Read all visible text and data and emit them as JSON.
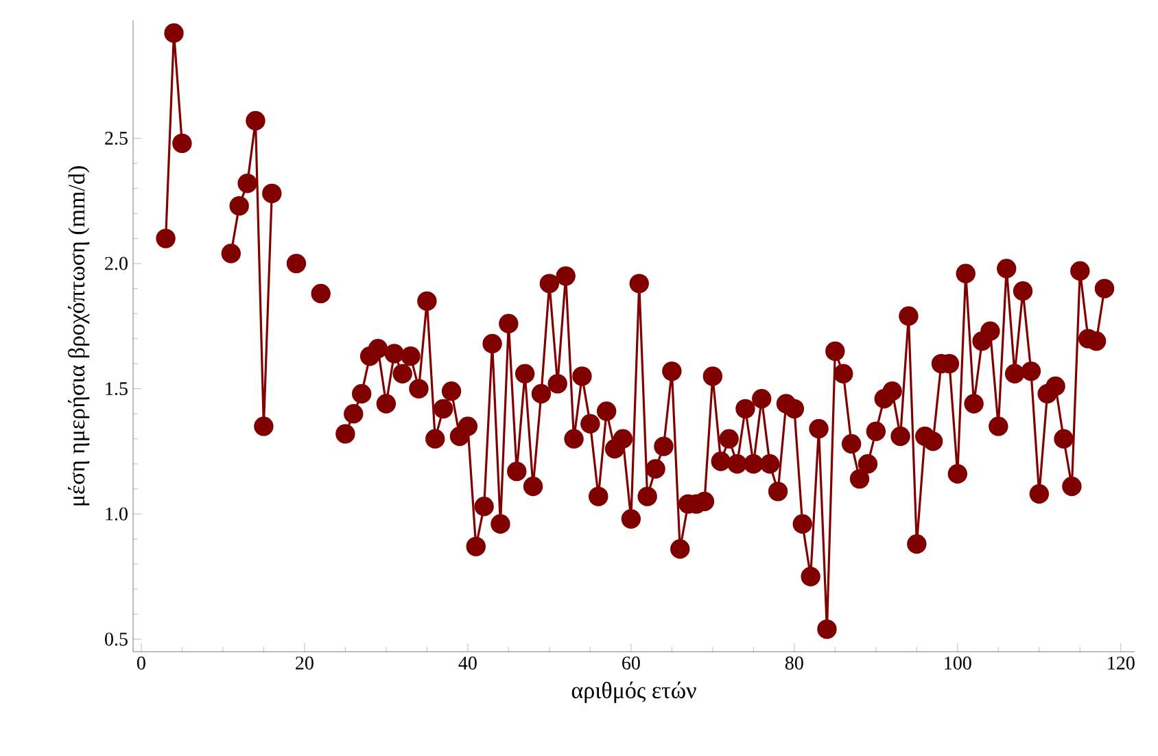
{
  "chart_data": {
    "type": "line",
    "xlabel": "αριθμός ετών",
    "ylabel": "μέση ημερήσια βροχόπτωση (mm/d)",
    "x": [
      3,
      4,
      5,
      6,
      7,
      8,
      9,
      10,
      11,
      12,
      13,
      14,
      15,
      16,
      17,
      18,
      19,
      20,
      21,
      22,
      23,
      24,
      25,
      26,
      27,
      28,
      29,
      30,
      31,
      32,
      33,
      34,
      35,
      36,
      37,
      38,
      39,
      40,
      41,
      42,
      43,
      44,
      45,
      46,
      47,
      48,
      49,
      50,
      51,
      52,
      53,
      54,
      55,
      56,
      57,
      58,
      59,
      60,
      61,
      62,
      63,
      64,
      65,
      66,
      67,
      68,
      69,
      70,
      71,
      72,
      73,
      74,
      75,
      76,
      77,
      78,
      79,
      80,
      81,
      82,
      83,
      84,
      85,
      86,
      87,
      88,
      89,
      90,
      91,
      92,
      93,
      94,
      95,
      96,
      97,
      98,
      99,
      100,
      101,
      102,
      103,
      104,
      105,
      106,
      107,
      108,
      109,
      110,
      111,
      112,
      113,
      114,
      115,
      116,
      117,
      118
    ],
    "series": [
      {
        "color": "#800000",
        "values": [
          2.1,
          2.92,
          2.48,
          null,
          null,
          null,
          null,
          null,
          2.04,
          2.23,
          2.32,
          2.57,
          1.35,
          2.28,
          null,
          null,
          2.0,
          null,
          null,
          1.88,
          null,
          null,
          1.32,
          1.4,
          1.48,
          1.63,
          1.66,
          1.44,
          1.64,
          1.56,
          1.63,
          1.5,
          1.85,
          1.3,
          1.42,
          1.49,
          1.31,
          1.35,
          0.87,
          1.03,
          1.68,
          0.96,
          1.76,
          1.17,
          1.56,
          1.11,
          1.48,
          1.92,
          1.52,
          1.95,
          1.3,
          1.55,
          1.36,
          1.07,
          1.41,
          1.26,
          1.3,
          0.98,
          1.92,
          1.07,
          1.18,
          1.27,
          1.57,
          0.86,
          1.04,
          1.04,
          1.05,
          1.55,
          1.21,
          1.3,
          1.2,
          1.42,
          1.2,
          1.46,
          1.2,
          1.09,
          1.44,
          1.42,
          0.96,
          0.75,
          1.34,
          0.54,
          1.65,
          1.56,
          1.28,
          1.14,
          1.2,
          1.33,
          1.46,
          1.49,
          1.31,
          1.79,
          0.88,
          1.31,
          1.29,
          1.6,
          1.6,
          1.16,
          1.96,
          1.44,
          1.69,
          1.73,
          1.35,
          1.98,
          1.56,
          1.89,
          1.57,
          1.08,
          1.48,
          1.51,
          1.3,
          1.11,
          1.97,
          1.7,
          1.69,
          1.9
        ]
      }
    ],
    "xlim": [
      -1,
      121.7
    ],
    "ylim": [
      0.45,
      2.97
    ],
    "xticks": [
      0,
      20,
      40,
      60,
      80,
      100,
      120
    ],
    "yticks": [
      {
        "value": 0.5,
        "label": "0.5"
      },
      {
        "value": 1.0,
        "label": "1.0"
      },
      {
        "value": 1.5,
        "label": "1.5"
      },
      {
        "value": 2.0,
        "label": "2.0"
      },
      {
        "value": 2.5,
        "label": "2.5"
      }
    ],
    "marker": "circle",
    "line_style": "solid",
    "grid": false
  }
}
